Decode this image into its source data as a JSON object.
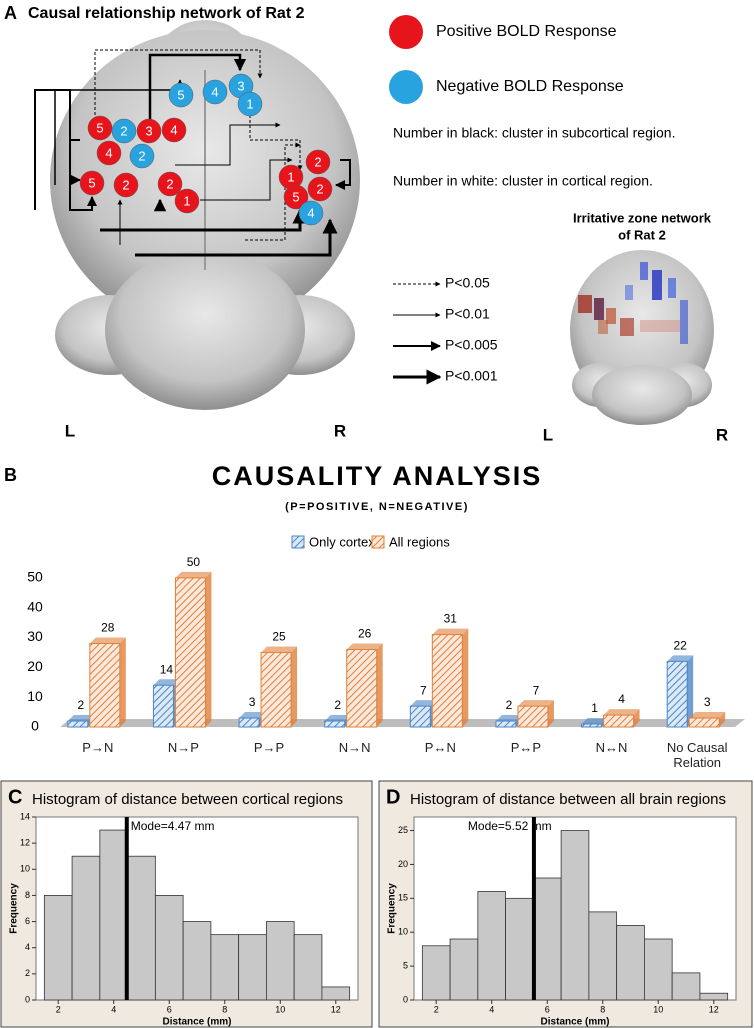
{
  "panel_a": {
    "letter": "A",
    "title": "Causal relationship network of Rat 2",
    "nodes": [
      {
        "label": "5",
        "color": "#29a3e0"
      },
      {
        "label": "4",
        "color": "#29a3e0"
      },
      {
        "label": "3",
        "color": "#29a3e0"
      },
      {
        "label": "1",
        "color": "#29a3e0"
      },
      {
        "label": "5",
        "color": "#e8141b"
      },
      {
        "label": "2",
        "color": "#29a3e0"
      },
      {
        "label": "3",
        "color": "#e8141b"
      },
      {
        "label": "4",
        "color": "#e8141b"
      },
      {
        "label": "4",
        "color": "#e8141b"
      },
      {
        "label": "2",
        "color": "#29a3e0"
      },
      {
        "label": "5",
        "color": "#e8141b"
      },
      {
        "label": "2",
        "color": "#e8141b"
      },
      {
        "label": "2",
        "color": "#e8141b"
      },
      {
        "label": "1",
        "color": "#e8141b"
      },
      {
        "label": "2",
        "color": "#e8141b"
      },
      {
        "label": "1",
        "color": "#e8141b"
      },
      {
        "label": "2",
        "color": "#e8141b"
      },
      {
        "label": "5",
        "color": "#e8141b"
      },
      {
        "label": "4",
        "color": "#29a3e0"
      }
    ],
    "legend": [
      {
        "label": "Positive BOLD Response",
        "color": "#e8141b"
      },
      {
        "label": "Negative BOLD Response",
        "color": "#29a3e0"
      }
    ],
    "notes": [
      "Number in black: cluster in subcortical region.",
      "Number in white: cluster in cortical region."
    ],
    "significance": [
      "P<0.05",
      "P<0.01",
      "P<0.005",
      "P<0.001"
    ],
    "inset_title": [
      "Irritative zone network",
      "of Rat 2"
    ],
    "side_labels": [
      "L",
      "R"
    ]
  },
  "chart_data": [
    {
      "type": "bar",
      "letter": "B",
      "title": "CAUSALITY ANALYSIS",
      "subtitle": "(P=POSITIVE, N=NEGATIVE)",
      "categories": [
        "P→N",
        "N→P",
        "P→P",
        "N→N",
        "P↔N",
        "P↔P",
        "N↔N",
        "No Causal Relation"
      ],
      "series": [
        {
          "name": "Only cortex",
          "color": "#4a86c8",
          "values": [
            2,
            14,
            3,
            2,
            7,
            2,
            1,
            22
          ]
        },
        {
          "name": "All regions",
          "color": "#e0803a",
          "values": [
            28,
            50,
            25,
            26,
            31,
            7,
            4,
            3
          ]
        }
      ],
      "ylim": [
        0,
        55
      ],
      "yticks": [
        0,
        10,
        20,
        30,
        40,
        50
      ]
    },
    {
      "type": "histogram",
      "letter": "C",
      "title": "Histogram of distance between cortical regions",
      "x_label": "Distance (mm)",
      "y_label": "Frequency",
      "bins": [
        1.5,
        2.5,
        3.5,
        4.5,
        5.5,
        6.5,
        7.5,
        8.5,
        9.5,
        10.5,
        11.5,
        12.5
      ],
      "values": [
        8,
        11,
        13,
        11,
        8,
        6,
        5,
        5,
        6,
        5,
        1
      ],
      "color": "#c8c8c8",
      "mode": 4.47,
      "annotation": "Mode=4.47 mm",
      "xlim": [
        1.2,
        12.8
      ],
      "xticks": [
        2,
        4,
        6,
        8,
        10,
        12
      ],
      "ylim": [
        0,
        14
      ],
      "yticks": [
        0,
        2,
        4,
        6,
        8,
        10,
        12,
        14
      ]
    },
    {
      "type": "histogram",
      "letter": "D",
      "title": "Histogram of distance between all brain regions",
      "x_label": "Distance (mm)",
      "y_label": "Frequency",
      "bins": [
        1.5,
        2.5,
        3.5,
        4.5,
        5.5,
        6.5,
        7.5,
        8.5,
        9.5,
        10.5,
        11.5,
        12.5
      ],
      "values": [
        8,
        9,
        16,
        15,
        18,
        25,
        13,
        11,
        9,
        4,
        1
      ],
      "color": "#c8c8c8",
      "mode": 5.52,
      "annotation": "Mode=5.52 mm",
      "xlim": [
        1.2,
        12.8
      ],
      "xticks": [
        2,
        4,
        6,
        8,
        10,
        12
      ],
      "ylim": [
        0,
        27
      ],
      "yticks": [
        0,
        5,
        10,
        15,
        20,
        25
      ]
    }
  ]
}
